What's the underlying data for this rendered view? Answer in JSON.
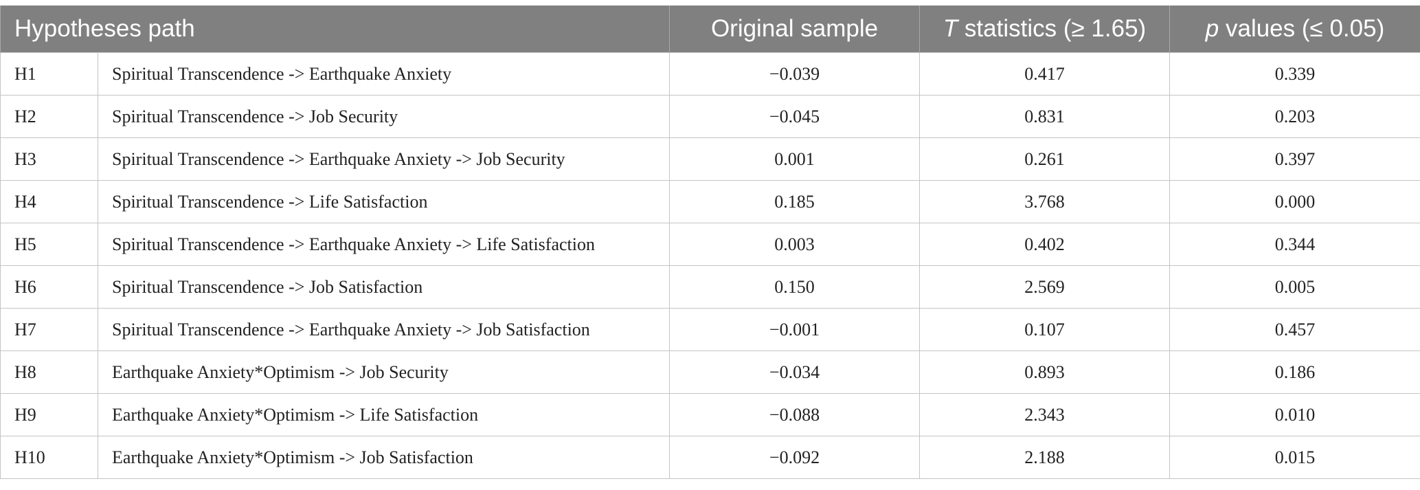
{
  "header": {
    "hypotheses_path": "Hypotheses path",
    "original_sample": "Original sample",
    "t_stat_italic": "T",
    "t_stat_rest": " statistics (≥ 1.65)",
    "p_val_italic": "p",
    "p_val_rest": " values (≤ 0.05)"
  },
  "rows": [
    {
      "id": "H1",
      "path": "Spiritual Transcendence -> Earthquake Anxiety",
      "original_sample": "−0.039",
      "t_statistic": "0.417",
      "p_value": "0.339"
    },
    {
      "id": "H2",
      "path": "Spiritual Transcendence -> Job Security",
      "original_sample": "−0.045",
      "t_statistic": "0.831",
      "p_value": "0.203"
    },
    {
      "id": "H3",
      "path": "Spiritual Transcendence -> Earthquake Anxiety -> Job Security",
      "original_sample": "0.001",
      "t_statistic": "0.261",
      "p_value": "0.397"
    },
    {
      "id": "H4",
      "path": "Spiritual Transcendence -> Life Satisfaction",
      "original_sample": "0.185",
      "t_statistic": "3.768",
      "p_value": "0.000"
    },
    {
      "id": "H5",
      "path": "Spiritual Transcendence -> Earthquake Anxiety -> Life Satisfaction",
      "original_sample": "0.003",
      "t_statistic": "0.402",
      "p_value": "0.344"
    },
    {
      "id": "H6",
      "path": "Spiritual Transcendence -> Job Satisfaction",
      "original_sample": "0.150",
      "t_statistic": "2.569",
      "p_value": "0.005"
    },
    {
      "id": "H7",
      "path": "Spiritual Transcendence -> Earthquake Anxiety -> Job Satisfaction",
      "original_sample": "−0.001",
      "t_statistic": "0.107",
      "p_value": "0.457"
    },
    {
      "id": "H8",
      "path": "Earthquake Anxiety*Optimism -> Job Security",
      "original_sample": "−0.034",
      "t_statistic": "0.893",
      "p_value": "0.186"
    },
    {
      "id": "H9",
      "path": "Earthquake Anxiety*Optimism -> Life Satisfaction",
      "original_sample": "−0.088",
      "t_statistic": "2.343",
      "p_value": "0.010"
    },
    {
      "id": "H10",
      "path": "Earthquake Anxiety*Optimism -> Job Satisfaction",
      "original_sample": "−0.092",
      "t_statistic": "2.188",
      "p_value": "0.015"
    }
  ],
  "colors": {
    "header_bg": "#808080",
    "header_text": "#ffffff",
    "grid": "#c4c4c4",
    "body_text": "#222222"
  }
}
